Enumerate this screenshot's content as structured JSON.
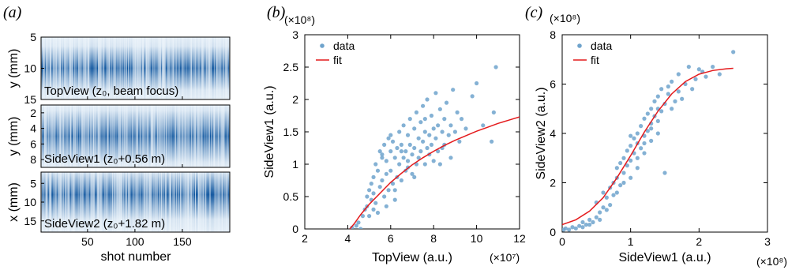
{
  "panels": [
    {
      "label": "(a)"
    },
    {
      "label": "(b)"
    },
    {
      "label": "(c)"
    }
  ],
  "chart_data": [
    {
      "type": "heatmap",
      "panel": "(a)",
      "xlabel": "shot number",
      "xticks": [
        50,
        100,
        150
      ],
      "xlim": [
        1,
        200
      ],
      "colormap": [
        "#ffffff",
        "#08519c"
      ],
      "strips": [
        {
          "caption": "TopView (z₀, beam focus)",
          "ylabel": "y (mm)",
          "yticks": [
            5,
            10,
            15
          ],
          "ylim": [
            5,
            15
          ],
          "profile_center": 10,
          "profile_width": 1.6
        },
        {
          "caption": "SideView1 (z₀+0.56 m)",
          "ylabel": "y (mm)",
          "yticks": [
            2,
            4,
            6,
            8
          ],
          "ylim": [
            1,
            9
          ],
          "profile_center": 5,
          "profile_width": 1.5
        },
        {
          "caption": "SideView2 (z₀+1.82 m)",
          "ylabel": "x (mm)",
          "yticks": [
            5,
            10,
            15
          ],
          "ylim": [
            2,
            18
          ],
          "profile_center": 8,
          "profile_width": 3.0
        }
      ]
    },
    {
      "type": "scatter",
      "panel": "(b)",
      "xlabel": "TopView (a.u.)",
      "ylabel": "SideView1 (a.u.)",
      "x_multiplier": "(×10⁷)",
      "y_multiplier": "(×10⁸)",
      "xlim": [
        2,
        12
      ],
      "ylim": [
        0,
        3
      ],
      "xticks": [
        2,
        4,
        6,
        8,
        10,
        12
      ],
      "yticks": [
        0,
        0.5,
        1,
        1.5,
        2,
        2.5,
        3
      ],
      "legend": {
        "position": "top-left",
        "entries": [
          "data",
          "fit"
        ]
      },
      "series": [
        {
          "name": "data",
          "kind": "points",
          "color": "#6fa3cc",
          "points": [
            [
              4.2,
              0.02
            ],
            [
              4.4,
              0.05
            ],
            [
              4.5,
              0.1
            ],
            [
              4.6,
              0.0
            ],
            [
              4.7,
              0.2
            ],
            [
              4.8,
              0.3
            ],
            [
              4.9,
              0.5
            ],
            [
              4.9,
              0.35
            ],
            [
              5.0,
              0.6
            ],
            [
              5.0,
              0.2
            ],
            [
              5.1,
              0.7
            ],
            [
              5.1,
              0.45
            ],
            [
              5.2,
              0.8
            ],
            [
              5.2,
              0.55
            ],
            [
              5.3,
              1.0
            ],
            [
              5.3,
              0.4
            ],
            [
              5.4,
              0.9
            ],
            [
              5.4,
              0.25
            ],
            [
              5.5,
              1.2
            ],
            [
              5.5,
              0.65
            ],
            [
              5.6,
              1.1
            ],
            [
              5.6,
              0.75
            ],
            [
              5.7,
              1.3
            ],
            [
              5.7,
              0.5
            ],
            [
              5.8,
              1.05
            ],
            [
              5.8,
              0.85
            ],
            [
              5.9,
              1.4
            ],
            [
              5.9,
              0.6
            ],
            [
              6.0,
              1.2
            ],
            [
              6.0,
              0.9
            ],
            [
              6.1,
              1.35
            ],
            [
              6.1,
              0.7
            ],
            [
              6.2,
              1.1
            ],
            [
              6.2,
              0.45
            ],
            [
              6.3,
              1.25
            ],
            [
              6.3,
              0.8
            ],
            [
              6.4,
              1.5
            ],
            [
              6.4,
              1.0
            ],
            [
              6.5,
              1.3
            ],
            [
              6.5,
              0.75
            ],
            [
              6.6,
              1.6
            ],
            [
              6.6,
              1.1
            ],
            [
              6.7,
              1.2
            ],
            [
              6.7,
              0.9
            ],
            [
              6.8,
              1.45
            ],
            [
              6.8,
              1.05
            ],
            [
              6.9,
              1.7
            ],
            [
              6.9,
              1.3
            ],
            [
              7.0,
              1.15
            ],
            [
              7.0,
              0.85
            ],
            [
              7.1,
              1.55
            ],
            [
              7.1,
              1.25
            ],
            [
              7.2,
              1.8
            ],
            [
              7.2,
              1.0
            ],
            [
              7.3,
              1.4
            ],
            [
              7.3,
              1.1
            ],
            [
              7.4,
              1.65
            ],
            [
              7.4,
              1.2
            ],
            [
              7.5,
              1.9
            ],
            [
              7.5,
              1.35
            ],
            [
              7.6,
              1.5
            ],
            [
              7.6,
              1.0
            ],
            [
              7.7,
              2.0
            ],
            [
              7.7,
              1.25
            ],
            [
              7.8,
              1.45
            ],
            [
              7.8,
              1.15
            ],
            [
              7.9,
              1.75
            ],
            [
              7.9,
              1.3
            ],
            [
              8.0,
              1.55
            ],
            [
              8.0,
              1.05
            ],
            [
              8.1,
              2.1
            ],
            [
              8.1,
              1.4
            ],
            [
              8.2,
              1.6
            ],
            [
              8.2,
              1.2
            ],
            [
              8.3,
              1.85
            ],
            [
              8.3,
              1.0
            ],
            [
              8.4,
              1.5
            ],
            [
              8.5,
              1.7
            ],
            [
              8.5,
              1.3
            ],
            [
              8.6,
              1.95
            ],
            [
              8.7,
              1.45
            ],
            [
              8.8,
              1.6
            ],
            [
              8.8,
              1.1
            ],
            [
              8.9,
              2.15
            ],
            [
              9.0,
              1.5
            ],
            [
              9.1,
              1.8
            ],
            [
              9.2,
              1.35
            ],
            [
              9.3,
              1.7
            ],
            [
              9.5,
              1.55
            ],
            [
              9.8,
              2.05
            ],
            [
              10.0,
              2.25
            ],
            [
              10.3,
              1.6
            ],
            [
              10.7,
              1.35
            ],
            [
              10.8,
              1.8
            ],
            [
              10.9,
              2.5
            ],
            [
              5.6,
              1.15
            ],
            [
              6.0,
              1.45
            ],
            [
              6.2,
              0.6
            ],
            [
              6.8,
              0.95
            ],
            [
              7.1,
              0.8
            ],
            [
              7.6,
              1.7
            ],
            [
              8.4,
              1.25
            ],
            [
              5.8,
              0.35
            ],
            [
              5.2,
              0.3
            ],
            [
              6.5,
              1.2
            ]
          ]
        },
        {
          "name": "fit",
          "kind": "line",
          "color": "#e41a1c",
          "points": [
            [
              4.1,
              0.0
            ],
            [
              4.3,
              0.08
            ],
            [
              4.6,
              0.22
            ],
            [
              5.0,
              0.38
            ],
            [
              5.5,
              0.55
            ],
            [
              6.0,
              0.72
            ],
            [
              6.5,
              0.86
            ],
            [
              7.0,
              0.99
            ],
            [
              7.5,
              1.1
            ],
            [
              8.0,
              1.2
            ],
            [
              8.5,
              1.29
            ],
            [
              9.0,
              1.37
            ],
            [
              9.5,
              1.44
            ],
            [
              10.0,
              1.51
            ],
            [
              10.5,
              1.57
            ],
            [
              11.0,
              1.63
            ],
            [
              11.5,
              1.68
            ],
            [
              12.0,
              1.73
            ]
          ]
        }
      ]
    },
    {
      "type": "scatter",
      "panel": "(c)",
      "xlabel": "SideView1 (a.u.)",
      "ylabel": "SideView2 (a.u.)",
      "x_multiplier": "(×10⁸)",
      "y_multiplier": "(×10⁸)",
      "xlim": [
        0,
        3
      ],
      "ylim": [
        0,
        8
      ],
      "xticks": [
        0,
        1,
        2,
        3
      ],
      "yticks": [
        0,
        2,
        4,
        6,
        8
      ],
      "legend": {
        "position": "top-left",
        "entries": [
          "data",
          "fit"
        ]
      },
      "series": [
        {
          "name": "data",
          "kind": "points",
          "color": "#6fa3cc",
          "points": [
            [
              0.02,
              0.1
            ],
            [
              0.05,
              0.15
            ],
            [
              0.1,
              0.1
            ],
            [
              0.15,
              0.2
            ],
            [
              0.2,
              0.15
            ],
            [
              0.25,
              0.25
            ],
            [
              0.3,
              0.2
            ],
            [
              0.35,
              0.3
            ],
            [
              0.4,
              0.5
            ],
            [
              0.45,
              0.4
            ],
            [
              0.5,
              0.6
            ],
            [
              0.5,
              1.2
            ],
            [
              0.55,
              0.8
            ],
            [
              0.6,
              1.0
            ],
            [
              0.6,
              1.6
            ],
            [
              0.65,
              1.4
            ],
            [
              0.7,
              1.8
            ],
            [
              0.7,
              1.1
            ],
            [
              0.75,
              2.0
            ],
            [
              0.75,
              1.5
            ],
            [
              0.8,
              2.2
            ],
            [
              0.8,
              2.6
            ],
            [
              0.85,
              1.9
            ],
            [
              0.85,
              2.8
            ],
            [
              0.9,
              2.4
            ],
            [
              0.9,
              3.0
            ],
            [
              0.95,
              2.7
            ],
            [
              0.95,
              3.3
            ],
            [
              1.0,
              2.9
            ],
            [
              1.0,
              3.5
            ],
            [
              1.0,
              2.2
            ],
            [
              1.05,
              3.2
            ],
            [
              1.05,
              3.8
            ],
            [
              1.1,
              3.0
            ],
            [
              1.1,
              4.0
            ],
            [
              1.1,
              3.6
            ],
            [
              1.15,
              3.4
            ],
            [
              1.15,
              4.3
            ],
            [
              1.2,
              3.9
            ],
            [
              1.2,
              4.6
            ],
            [
              1.2,
              3.2
            ],
            [
              1.25,
              4.1
            ],
            [
              1.25,
              4.8
            ],
            [
              1.3,
              4.4
            ],
            [
              1.3,
              5.0
            ],
            [
              1.3,
              3.7
            ],
            [
              1.35,
              4.7
            ],
            [
              1.35,
              5.3
            ],
            [
              1.4,
              4.5
            ],
            [
              1.4,
              5.5
            ],
            [
              1.4,
              5.0
            ],
            [
              1.45,
              4.9
            ],
            [
              1.45,
              5.8
            ],
            [
              1.5,
              2.4
            ],
            [
              1.5,
              5.2
            ],
            [
              1.55,
              5.6
            ],
            [
              1.6,
              6.1
            ],
            [
              1.6,
              5.0
            ],
            [
              1.7,
              5.7
            ],
            [
              1.7,
              6.4
            ],
            [
              1.75,
              5.4
            ],
            [
              1.8,
              6.0
            ],
            [
              1.85,
              6.7
            ],
            [
              1.9,
              5.8
            ],
            [
              1.95,
              6.2
            ],
            [
              2.0,
              6.6
            ],
            [
              2.05,
              6.5
            ],
            [
              2.1,
              6.3
            ],
            [
              2.2,
              6.7
            ],
            [
              2.3,
              6.4
            ],
            [
              2.5,
              7.3
            ],
            [
              0.3,
              0.4
            ],
            [
              0.4,
              0.3
            ],
            [
              0.55,
              0.5
            ],
            [
              0.65,
              0.9
            ],
            [
              0.8,
              1.6
            ],
            [
              0.9,
              2.0
            ],
            [
              1.0,
              3.9
            ],
            [
              1.1,
              2.6
            ],
            [
              1.2,
              3.6
            ],
            [
              1.3,
              4.2
            ],
            [
              1.4,
              4.0
            ],
            [
              1.55,
              5.9
            ],
            [
              1.65,
              5.3
            ]
          ]
        },
        {
          "name": "fit",
          "kind": "line",
          "color": "#e41a1c",
          "points": [
            [
              0.0,
              0.3
            ],
            [
              0.2,
              0.5
            ],
            [
              0.4,
              0.85
            ],
            [
              0.6,
              1.4
            ],
            [
              0.8,
              2.2
            ],
            [
              1.0,
              3.1
            ],
            [
              1.2,
              4.05
            ],
            [
              1.4,
              4.9
            ],
            [
              1.6,
              5.6
            ],
            [
              1.8,
              6.1
            ],
            [
              2.0,
              6.4
            ],
            [
              2.2,
              6.55
            ],
            [
              2.4,
              6.62
            ],
            [
              2.5,
              6.64
            ]
          ]
        }
      ]
    }
  ]
}
